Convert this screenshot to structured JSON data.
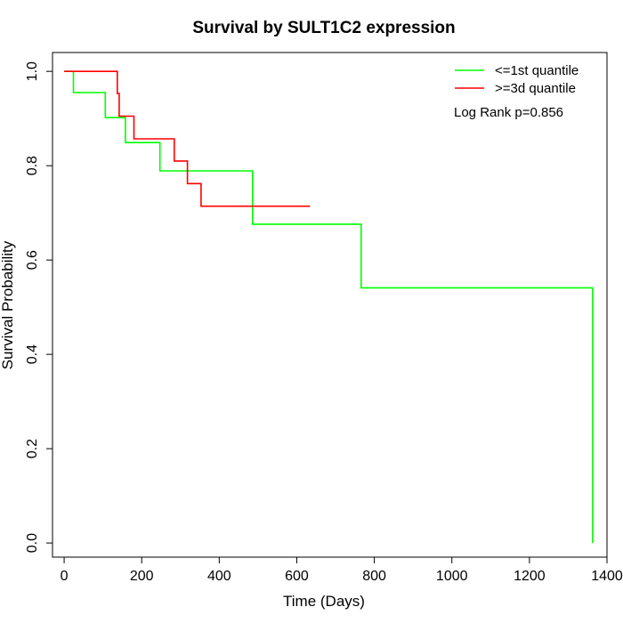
{
  "chart_data": {
    "type": "line",
    "step": true,
    "title": "Survival by SULT1C2 expression",
    "xlabel": "Time (Days)",
    "ylabel": "Survival Probability",
    "xlim": [
      -30,
      1400
    ],
    "ylim": [
      -0.03,
      1.04
    ],
    "xticks": [
      0,
      200,
      400,
      600,
      800,
      1000,
      1200,
      1400
    ],
    "yticks": [
      0.0,
      0.2,
      0.4,
      0.6,
      0.8,
      1.0
    ],
    "xtick_labels": [
      "0",
      "200",
      "400",
      "600",
      "800",
      "1000",
      "1200",
      "1400"
    ],
    "ytick_labels": [
      "0.0",
      "0.2",
      "0.4",
      "0.6",
      "0.8",
      "1.0"
    ],
    "legend_position": "top-right",
    "annotation": "Log Rank p=0.856",
    "series": [
      {
        "name": "<=1st quantile",
        "color": "#00ff00",
        "points": [
          [
            0,
            1.0
          ],
          [
            24,
            1.0
          ],
          [
            24,
            0.955
          ],
          [
            106,
            0.955
          ],
          [
            106,
            0.902
          ],
          [
            158,
            0.902
          ],
          [
            158,
            0.849
          ],
          [
            247,
            0.849
          ],
          [
            247,
            0.789
          ],
          [
            486,
            0.789
          ],
          [
            486,
            0.676
          ],
          [
            766,
            0.676
          ],
          [
            766,
            0.541
          ],
          [
            1363,
            0.541
          ],
          [
            1363,
            0.0
          ]
        ]
      },
      {
        "name": ">=3d quantile",
        "color": "#ff0000",
        "points": [
          [
            0,
            1.0
          ],
          [
            137,
            1.0
          ],
          [
            137,
            0.953
          ],
          [
            142,
            0.953
          ],
          [
            142,
            0.905
          ],
          [
            180,
            0.905
          ],
          [
            180,
            0.857
          ],
          [
            284,
            0.857
          ],
          [
            284,
            0.81
          ],
          [
            318,
            0.81
          ],
          [
            318,
            0.762
          ],
          [
            353,
            0.762
          ],
          [
            353,
            0.714
          ],
          [
            634,
            0.714
          ]
        ]
      }
    ]
  }
}
